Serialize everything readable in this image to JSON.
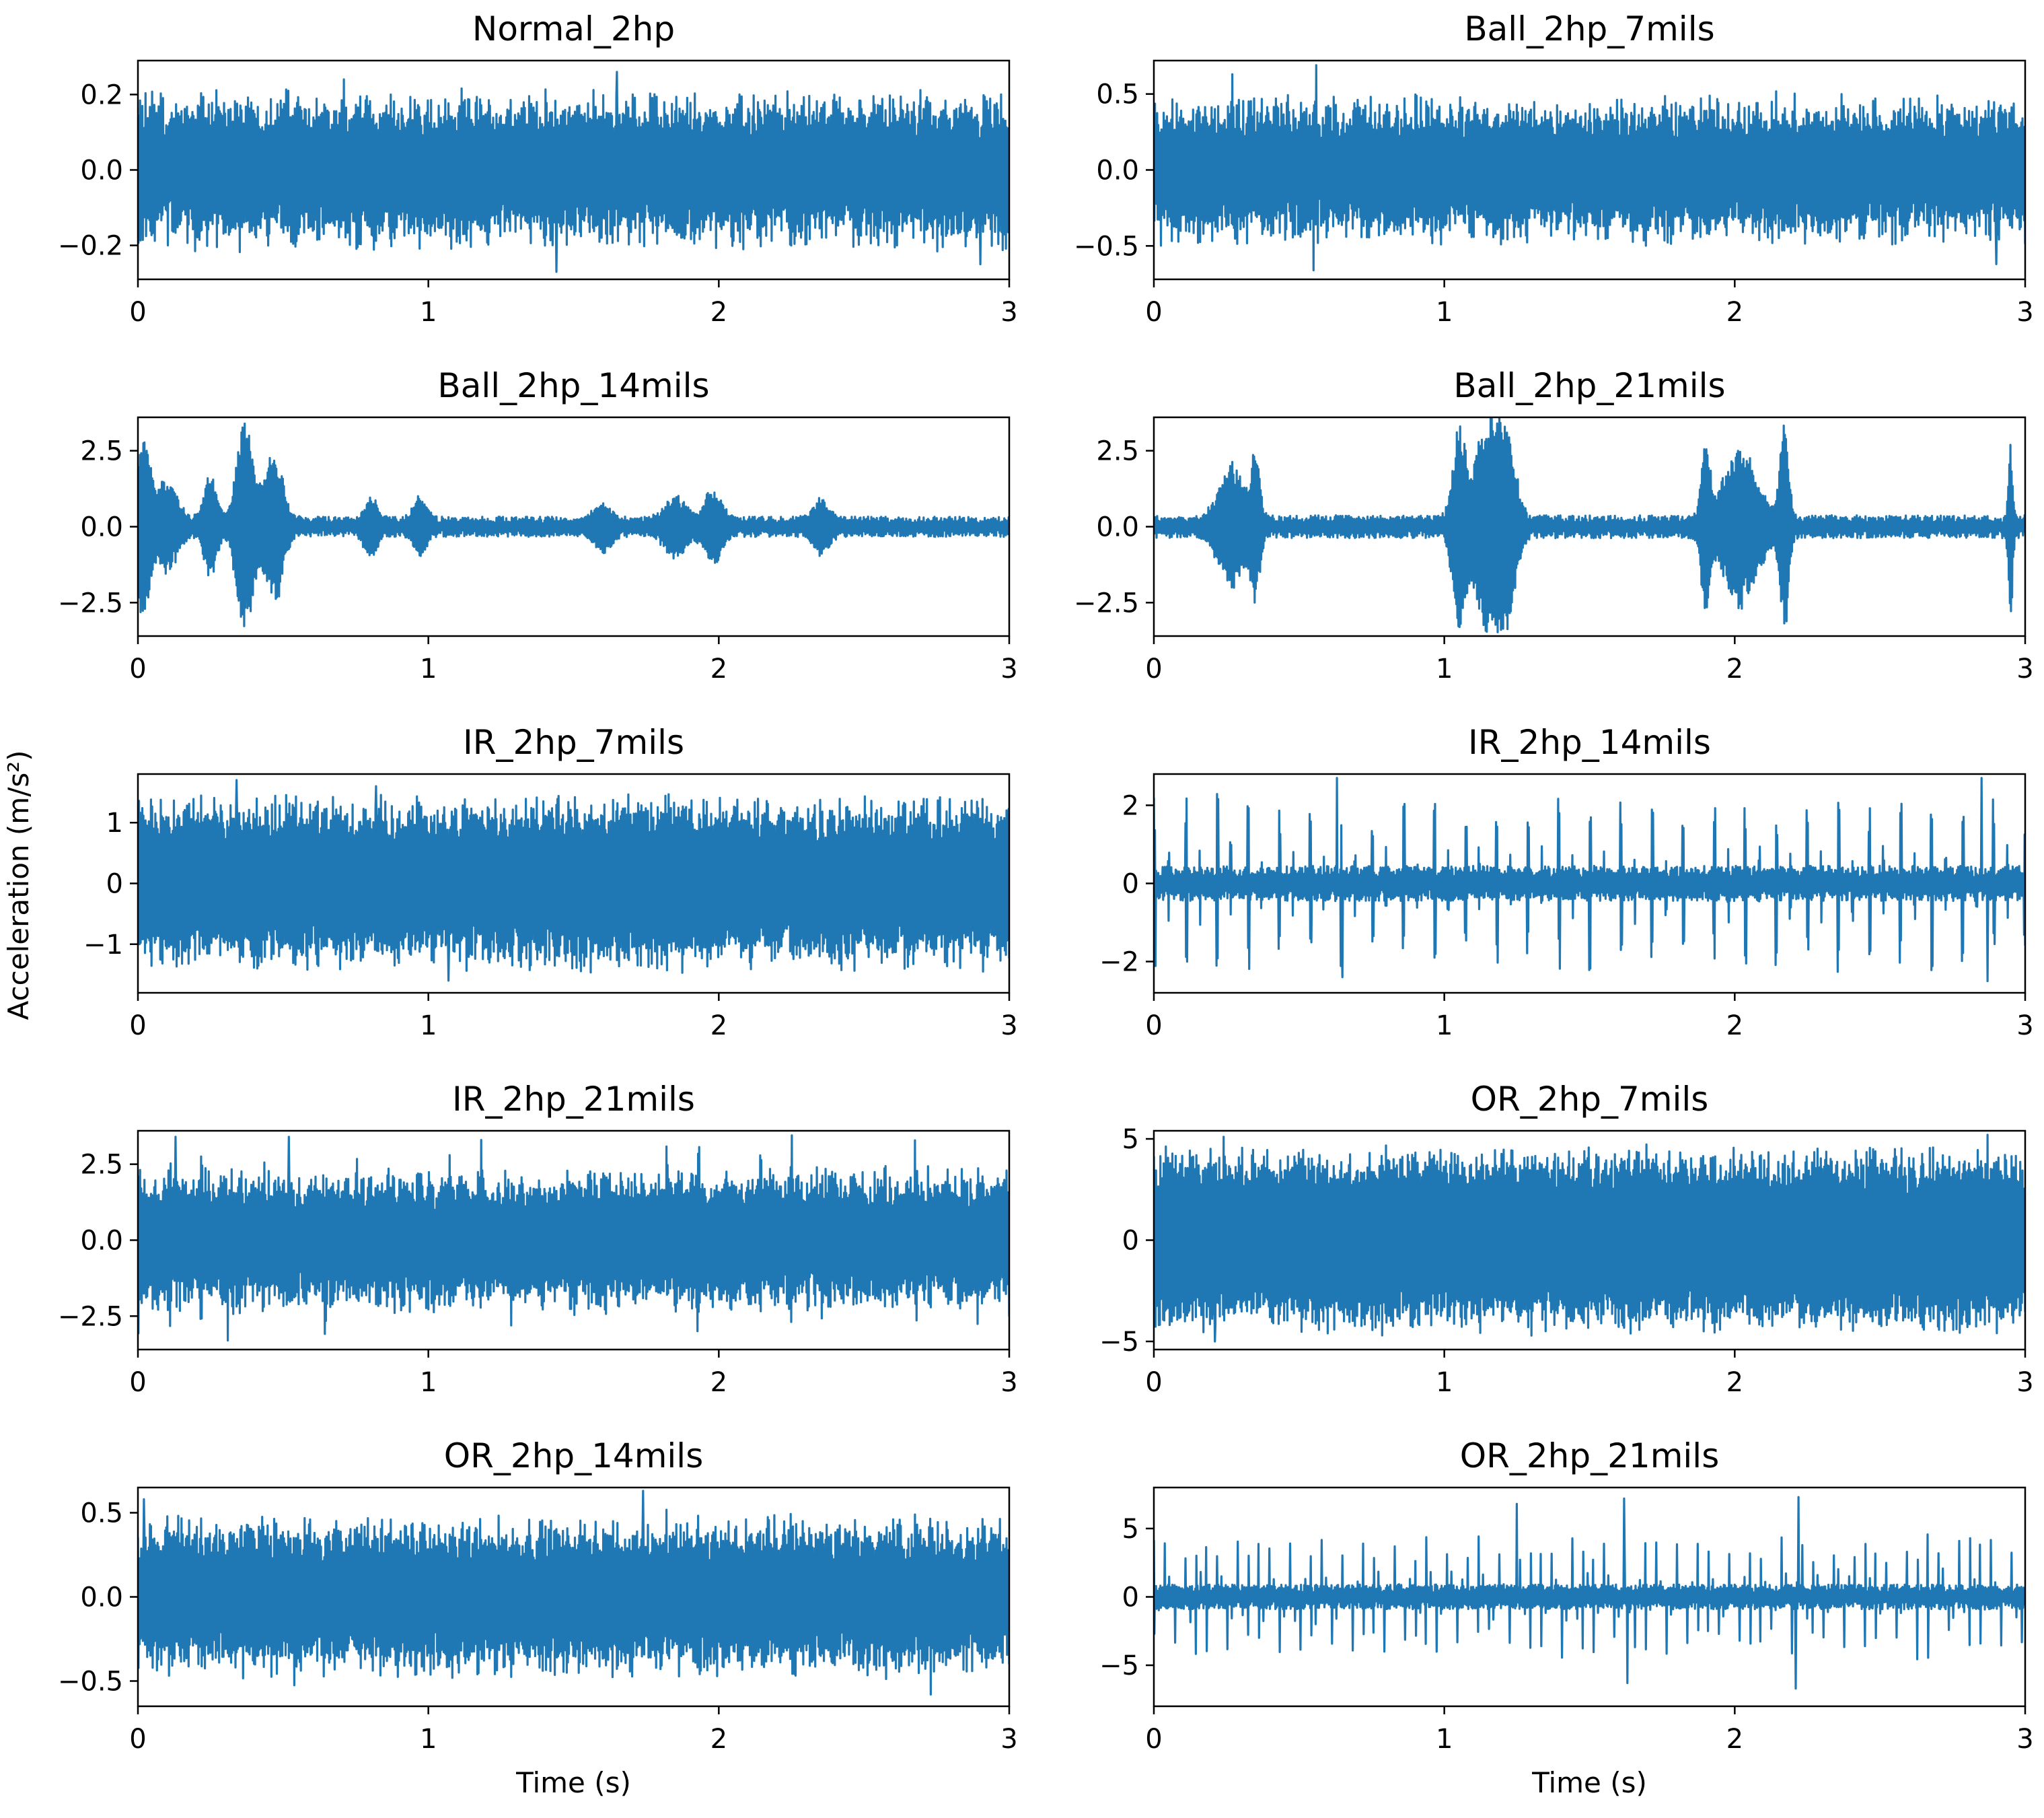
{
  "chart_data": {
    "type": "line",
    "layout": "5x2 grid",
    "shared_ylabel": "Acceleration (m/s²)",
    "color": "#1f77b4",
    "panels": [
      {
        "title": "Normal_2hp",
        "xlabel": "",
        "xlim": [
          0,
          3
        ],
        "ylim": [
          -0.29,
          0.29
        ],
        "x_ticks": [
          0,
          1,
          2,
          3
        ],
        "y_ticks": [
          0.2,
          0.0,
          -0.2
        ],
        "y_tick_labels": [
          "0.2",
          "0.0",
          "−0.2"
        ],
        "signal": {
          "kind": "noise",
          "base": 0.17,
          "var": 0.05,
          "peaks": [
            [
              1.65,
              0.26
            ],
            [
              1.44,
              -0.27
            ],
            [
              0.71,
              0.24
            ],
            [
              2.9,
              -0.25
            ]
          ],
          "seed": 1
        }
      },
      {
        "title": "Ball_2hp_7mils",
        "xlabel": "",
        "xlim": [
          0,
          3
        ],
        "ylim": [
          -0.72,
          0.72
        ],
        "x_ticks": [
          0,
          1,
          2,
          3
        ],
        "y_ticks": [
          0.5,
          0.0,
          -0.5
        ],
        "y_tick_labels": [
          "0.5",
          "0.0",
          "−0.5"
        ],
        "signal": {
          "kind": "noise",
          "base": 0.4,
          "var": 0.12,
          "peaks": [
            [
              0.56,
              0.69
            ],
            [
              0.55,
              -0.66
            ],
            [
              0.27,
              0.63
            ],
            [
              2.9,
              -0.62
            ]
          ],
          "seed": 2
        }
      },
      {
        "title": "Ball_2hp_14mils",
        "xlabel": "",
        "xlim": [
          0,
          3
        ],
        "ylim": [
          -3.6,
          3.6
        ],
        "x_ticks": [
          0,
          1,
          2,
          3
        ],
        "y_ticks": [
          2.5,
          0.0,
          -2.5
        ],
        "y_tick_labels": [
          "2.5",
          "0.0",
          "−2.5"
        ],
        "signal": {
          "kind": "bursts",
          "base": 0.22,
          "seed": 3,
          "bursts": [
            [
              0.02,
              0.03,
              2.8
            ],
            [
              0.1,
              0.05,
              1.3
            ],
            [
              0.25,
              0.03,
              1.5
            ],
            [
              0.37,
              0.04,
              3.4
            ],
            [
              0.47,
              0.04,
              2.4
            ],
            [
              0.8,
              0.03,
              0.8
            ],
            [
              0.97,
              0.03,
              0.8
            ],
            [
              1.6,
              0.04,
              0.6
            ],
            [
              1.85,
              0.05,
              0.8
            ],
            [
              1.98,
              0.04,
              1.1
            ],
            [
              2.35,
              0.04,
              0.7
            ]
          ]
        }
      },
      {
        "title": "Ball_2hp_21mils",
        "xlabel": "",
        "xlim": [
          0,
          3
        ],
        "ylim": [
          -3.6,
          3.6
        ],
        "x_ticks": [
          0,
          1,
          2,
          3
        ],
        "y_ticks": [
          2.5,
          0.0,
          -2.5
        ],
        "y_tick_labels": [
          "2.5",
          "0.0",
          "−2.5"
        ],
        "signal": {
          "kind": "bursts",
          "base": 0.25,
          "seed": 4,
          "bursts": [
            [
              0.27,
              0.06,
              1.9
            ],
            [
              0.35,
              0.02,
              2.2
            ],
            [
              1.05,
              0.03,
              3.1
            ],
            [
              1.15,
              0.06,
              3.4
            ],
            [
              1.22,
              0.04,
              2.3
            ],
            [
              1.9,
              0.02,
              2.6
            ],
            [
              2.02,
              0.08,
              2.4
            ],
            [
              2.17,
              0.02,
              3.4
            ],
            [
              2.95,
              0.01,
              2.8
            ]
          ]
        }
      },
      {
        "title": "IR_2hp_7mils",
        "xlabel": "",
        "xlim": [
          0,
          3
        ],
        "ylim": [
          -1.8,
          1.8
        ],
        "x_ticks": [
          0,
          1,
          2,
          3
        ],
        "y_ticks": [
          1,
          0,
          -1
        ],
        "y_tick_labels": [
          "1",
          "0",
          "−1"
        ],
        "signal": {
          "kind": "noise",
          "base": 1.25,
          "var": 0.25,
          "peaks": [
            [
              0.34,
              1.7
            ],
            [
              1.07,
              -1.6
            ],
            [
              0.82,
              1.6
            ]
          ],
          "seed": 5
        }
      },
      {
        "title": "IR_2hp_14mils",
        "xlabel": "",
        "xlim": [
          0,
          3
        ],
        "ylim": [
          -2.8,
          2.8
        ],
        "x_ticks": [
          0,
          1,
          2,
          3
        ],
        "y_ticks": [
          2,
          0,
          -2
        ],
        "y_tick_labels": [
          "2",
          "0",
          "−2"
        ],
        "signal": {
          "kind": "impulses",
          "base": 0.3,
          "period": 0.107,
          "amp": 1.9,
          "alt": 1.4,
          "seed": 6,
          "big": [
            [
              0.63,
              2.7
            ],
            [
              2.85,
              2.7
            ],
            [
              0.65,
              -2.4
            ],
            [
              2.87,
              -2.5
            ]
          ]
        }
      },
      {
        "title": "IR_2hp_21mils",
        "xlabel": "",
        "xlim": [
          0,
          3
        ],
        "ylim": [
          -3.6,
          3.6
        ],
        "x_ticks": [
          0,
          1,
          2,
          3
        ],
        "y_ticks": [
          2.5,
          0.0,
          -2.5
        ],
        "y_tick_labels": [
          "2.5",
          "0.0",
          "−2.5"
        ],
        "signal": {
          "kind": "noise",
          "base": 2.0,
          "var": 0.45,
          "periodic": [
            0.107,
            1.2
          ],
          "peaks": [
            [
              0.13,
              3.4
            ],
            [
              0.52,
              3.4
            ],
            [
              0.31,
              -3.3
            ]
          ],
          "seed": 7
        }
      },
      {
        "title": "OR_2hp_7mils",
        "xlabel": "",
        "xlim": [
          0,
          3
        ],
        "ylim": [
          -5.4,
          5.4
        ],
        "x_ticks": [
          0,
          1,
          2,
          3
        ],
        "y_ticks": [
          5,
          0,
          -5
        ],
        "y_tick_labels": [
          "5",
          "0",
          "−5"
        ],
        "signal": {
          "kind": "noise",
          "base": 4.2,
          "var": 0.6,
          "peaks": [
            [
              0.24,
              5.1
            ],
            [
              2.87,
              5.2
            ],
            [
              0.21,
              -5.0
            ]
          ],
          "seed": 8
        }
      },
      {
        "title": "OR_2hp_14mils",
        "xlabel": "Time (s)",
        "xlim": [
          0,
          3
        ],
        "ylim": [
          -0.65,
          0.65
        ],
        "x_ticks": [
          0,
          1,
          2,
          3
        ],
        "y_ticks": [
          0.5,
          0.0,
          -0.5
        ],
        "y_tick_labels": [
          "0.5",
          "0.0",
          "−0.5"
        ],
        "signal": {
          "kind": "noise",
          "base": 0.4,
          "var": 0.1,
          "periodic": [
            0.107,
            0.1
          ],
          "peaks": [
            [
              1.74,
              0.63
            ],
            [
              0.02,
              0.58
            ],
            [
              2.73,
              -0.58
            ]
          ],
          "seed": 9
        }
      },
      {
        "title": "OR_2hp_21mils",
        "xlabel": "Time (s)",
        "xlim": [
          0,
          3
        ],
        "ylim": [
          -8,
          8
        ],
        "x_ticks": [
          0,
          1,
          2,
          3
        ],
        "y_ticks": [
          5,
          0,
          -5
        ],
        "y_tick_labels": [
          "5",
          "0",
          "−5"
        ],
        "signal": {
          "kind": "impulses",
          "base": 0.6,
          "period": 0.036,
          "amp": 3.8,
          "alt": 2.8,
          "seed": 10,
          "big": [
            [
              1.62,
              7.2
            ],
            [
              2.22,
              7.3
            ],
            [
              1.25,
              6.8
            ],
            [
              2.21,
              -6.7
            ],
            [
              1.63,
              -6.3
            ]
          ]
        }
      }
    ]
  }
}
